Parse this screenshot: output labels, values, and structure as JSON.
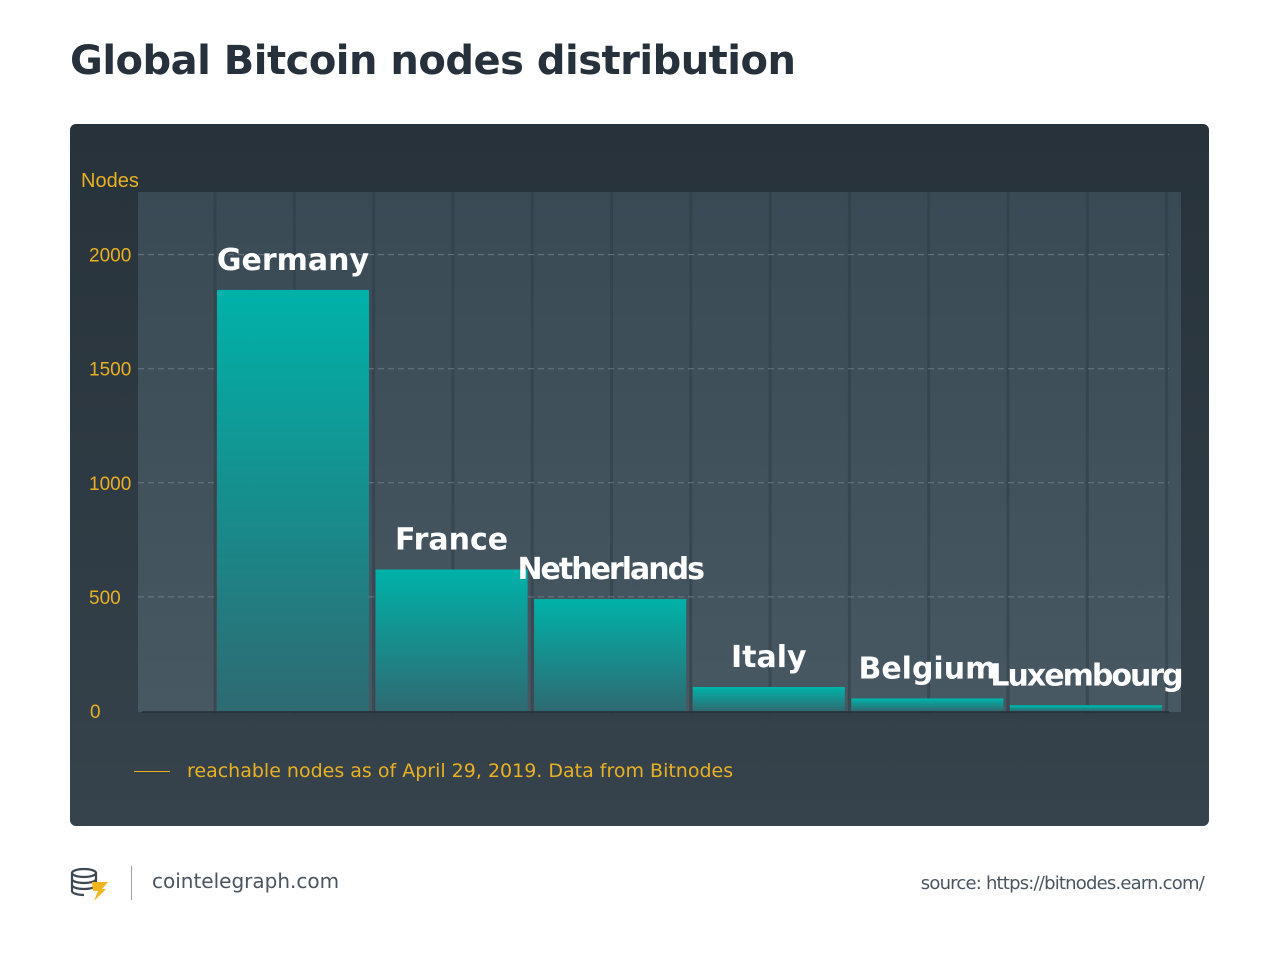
{
  "page": {
    "title": "Global Bitcoin nodes distribution"
  },
  "chart_data": {
    "type": "bar",
    "title": "Global Bitcoin nodes distribution",
    "ylabel": "Nodes",
    "xlabel": "",
    "categories": [
      "Germany",
      "France",
      "Netherlands",
      "Italy",
      "Belgium",
      "Luxembourg"
    ],
    "values": [
      1845,
      620,
      490,
      105,
      55,
      25
    ],
    "ylim": [
      0,
      2250
    ],
    "yticks": [
      0,
      500,
      1000,
      1500,
      2000
    ],
    "grid": true,
    "legend": {
      "placement": "bottom-left",
      "label": "reachable nodes as of April 29, 2019. Data from Bitnodes"
    },
    "colors": {
      "bar_top": "#00b2a9",
      "bar_bottom": "#2e6a72",
      "axis_text": "#e9b023",
      "bar_label": "#ffffff",
      "grid": "#7c8a94"
    }
  },
  "footer": {
    "logo_icon": "cointelegraph-logo-icon",
    "site": "cointelegraph.com",
    "source": "source: https://bitnodes.earn.com/"
  }
}
